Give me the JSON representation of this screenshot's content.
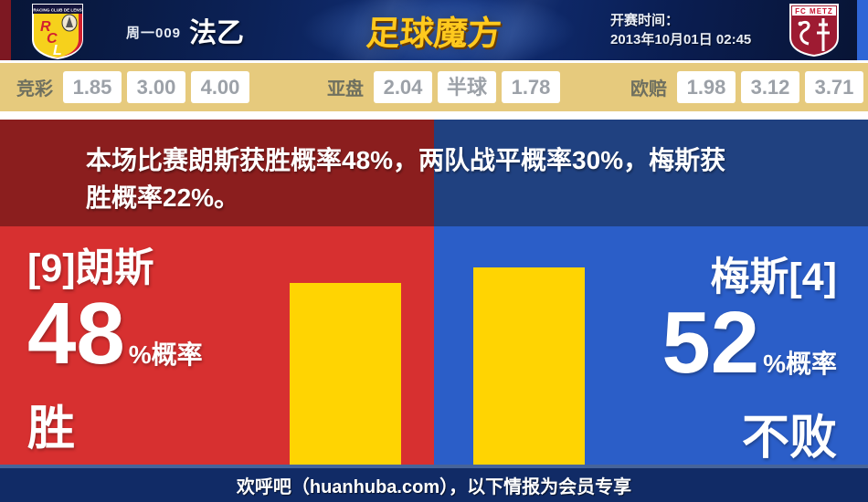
{
  "header": {
    "week_code": "周一009",
    "league": "法乙",
    "brand": "足球魔方",
    "kickoff_label": "开赛时间：",
    "kickoff_time": "2013年10月01日 02:45",
    "home_logo": {
      "banner": "RACING CLUB DE LENS",
      "l1": "R",
      "l2": "C",
      "l3": "L"
    },
    "away_logo": {
      "name": "FC METZ"
    }
  },
  "odds": {
    "groups": [
      {
        "label": "竞彩",
        "values": [
          "1.85",
          "3.00",
          "4.00"
        ]
      },
      {
        "label": "亚盘",
        "values": [
          "2.04",
          "半球",
          "1.78"
        ]
      },
      {
        "label": "欧赔",
        "values": [
          "1.98",
          "3.12",
          "3.71"
        ]
      }
    ]
  },
  "summary": {
    "full_text": "本场比赛朗斯获胜概率48%，两队战平概率30%，梅斯获胜概率22%。",
    "line1": "本场比赛朗斯获胜概率48%，两队战平概率30%，梅斯获",
    "line2": "胜概率22%。"
  },
  "left_panel": {
    "team": "[9]朗斯",
    "percent": "48",
    "suffix": "%概率",
    "outcome": "胜"
  },
  "right_panel": {
    "team": "梅斯[4]",
    "percent": "52",
    "suffix": "%概率",
    "outcome": "不败"
  },
  "footer": {
    "text": "欢呼吧（huanhuba.com），以下情报为会员专享"
  },
  "chart_data": {
    "type": "bar",
    "title": "本场比赛朗斯获胜概率48%，两队战平概率30%，梅斯获胜概率22%。",
    "categories": [
      "[9]朗斯 胜",
      "梅斯[4] 不败"
    ],
    "values": [
      48,
      52
    ],
    "unit": "%",
    "bar_color": "#ffd402",
    "probabilities": {
      "home_win_pct": 48,
      "draw_pct": 30,
      "away_win_pct": 22
    }
  },
  "colors": {
    "home_red": "#d73030",
    "home_dark_red": "#8b1e1e",
    "away_blue": "#2b5ec8",
    "away_dark_blue": "#204180",
    "bar_yellow": "#ffd402",
    "odds_tan": "#e6ca7d",
    "footer_navy": "#112b66",
    "brand_gold": "#ffc91e"
  }
}
